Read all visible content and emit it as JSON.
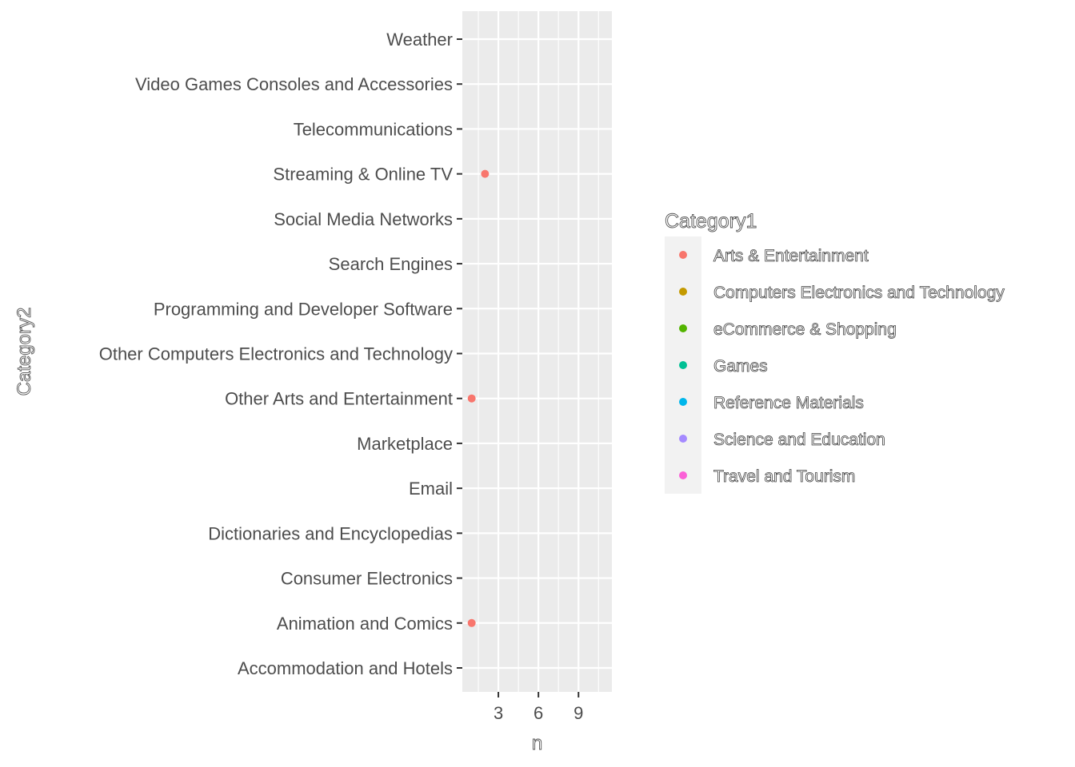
{
  "chart_data": {
    "type": "scatter",
    "title": "",
    "xlabel": "n",
    "ylabel": "Category2",
    "xlim": [
      0.3,
      11.5
    ],
    "x_ticks": [
      3,
      6,
      9
    ],
    "x_tick_labels": [
      "3",
      "6",
      "9"
    ],
    "y_categories": [
      "Accommodation and Hotels",
      "Animation and Comics",
      "Consumer Electronics",
      "Dictionaries and Encyclopedias",
      "Email",
      "Marketplace",
      "Other Arts and Entertainment",
      "Other Computers Electronics and Technology",
      "Programming and Developer Software",
      "Search Engines",
      "Social Media Networks",
      "Streaming & Online TV",
      "Telecommunications",
      "Video Games Consoles and Accessories",
      "Weather"
    ],
    "grid": true,
    "legend": {
      "title": "Category1",
      "position": "right",
      "entries": [
        {
          "label": "Arts & Entertainment",
          "color": "#F8766D"
        },
        {
          "label": "Computers Electronics and Technology",
          "color": "#C49A00"
        },
        {
          "label": "eCommerce & Shopping",
          "color": "#53B400"
        },
        {
          "label": "Games",
          "color": "#00C094"
        },
        {
          "label": "Reference Materials",
          "color": "#00B6EB"
        },
        {
          "label": "Science and Education",
          "color": "#A58AFF"
        },
        {
          "label": "Travel and Tourism",
          "color": "#FB61D7"
        }
      ]
    },
    "points": [
      {
        "x": 2,
        "y": "Streaming & Online TV",
        "series": "Arts & Entertainment"
      },
      {
        "x": 1,
        "y": "Other Arts and Entertainment",
        "series": "Arts & Entertainment"
      },
      {
        "x": 1,
        "y": "Animation and Comics",
        "series": "Arts & Entertainment"
      }
    ],
    "colors": {
      "panel": "#EBEBEB",
      "grid": "#FFFFFF",
      "tick": "#333333"
    }
  }
}
